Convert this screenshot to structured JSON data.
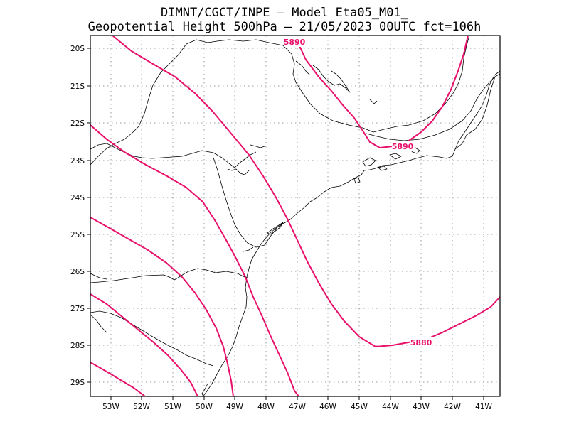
{
  "header": {
    "line1": "DIMNT/CGCT/INPE –   Model Eta05_M01_",
    "line2": "Geopotential Height 500hPa –   21/05/2023 00UTC fct=106h"
  },
  "axes": {
    "lat_labels": [
      "20S",
      "21S",
      "22S",
      "23S",
      "24S",
      "25S",
      "26S",
      "27S",
      "28S",
      "29S"
    ],
    "lon_labels": [
      "53W",
      "52W",
      "51W",
      "50W",
      "49W",
      "48W",
      "47W",
      "46W",
      "45W",
      "44W",
      "43W",
      "42W",
      "41W"
    ]
  },
  "contours": {
    "color": "#e8106b",
    "labels": [
      "5890",
      "5890",
      "5880"
    ]
  },
  "colors": {
    "coast": "#000000",
    "grid": "#9a9a9a"
  }
}
